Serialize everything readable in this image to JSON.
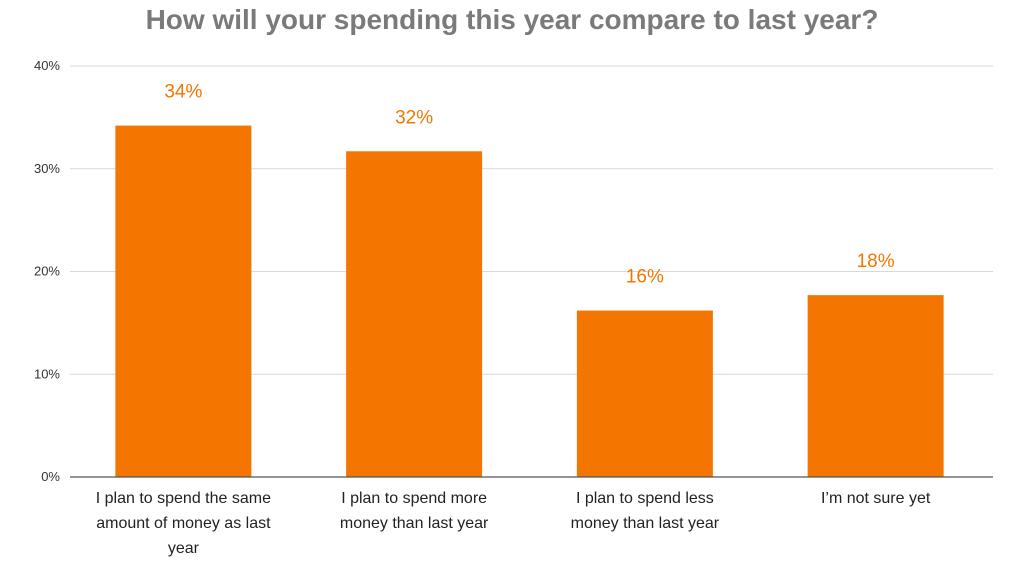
{
  "chart_data": {
    "type": "bar",
    "title": "How will your spending this year compare to last year?",
    "categories": [
      [
        "I plan to spend the same",
        "amount of money as last",
        "year"
      ],
      [
        "I plan to spend more",
        "money than last year"
      ],
      [
        "I plan to spend less",
        "money than last year"
      ],
      [
        "I’m not sure yet"
      ]
    ],
    "values": [
      34.2,
      31.7,
      16.2,
      17.7
    ],
    "data_labels": [
      "34%",
      "32%",
      "16%",
      "18%"
    ],
    "yticks": [
      0,
      10,
      20,
      30,
      40
    ],
    "ytick_labels": [
      "0%",
      "10%",
      "20%",
      "30%",
      "40%"
    ],
    "ylim": [
      0,
      40
    ],
    "xlabel": "",
    "ylabel": "",
    "grid": true,
    "legend": "none",
    "colors": {
      "bar": "#f47500",
      "data_label": "#f47500",
      "title": "#7a7a7a",
      "grid": "#d9d9d9",
      "axis": "#555555"
    }
  }
}
